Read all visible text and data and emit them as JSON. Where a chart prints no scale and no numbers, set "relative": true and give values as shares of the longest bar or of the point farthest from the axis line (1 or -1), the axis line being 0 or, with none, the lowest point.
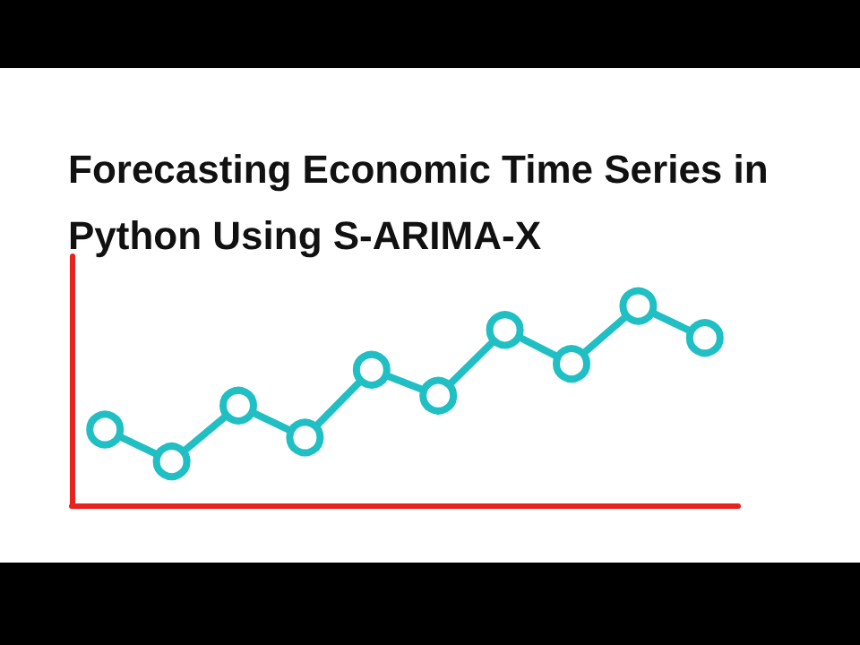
{
  "chart_data": {
    "type": "line",
    "title": "Forecasting Economic Time Series in Python Using S-ARIMA-X",
    "categories": [
      null,
      null,
      null,
      null,
      null,
      null,
      null,
      null,
      null,
      null
    ],
    "series": [
      {
        "color": "#1fbfc4",
        "values": [
          0.38,
          0.22,
          0.5,
          0.34,
          0.68,
          0.55,
          0.88,
          0.71,
          1,
          0.84
        ]
      }
    ],
    "relative": true,
    "marker": "circle",
    "line_style": "solid",
    "grid": false
  }
}
